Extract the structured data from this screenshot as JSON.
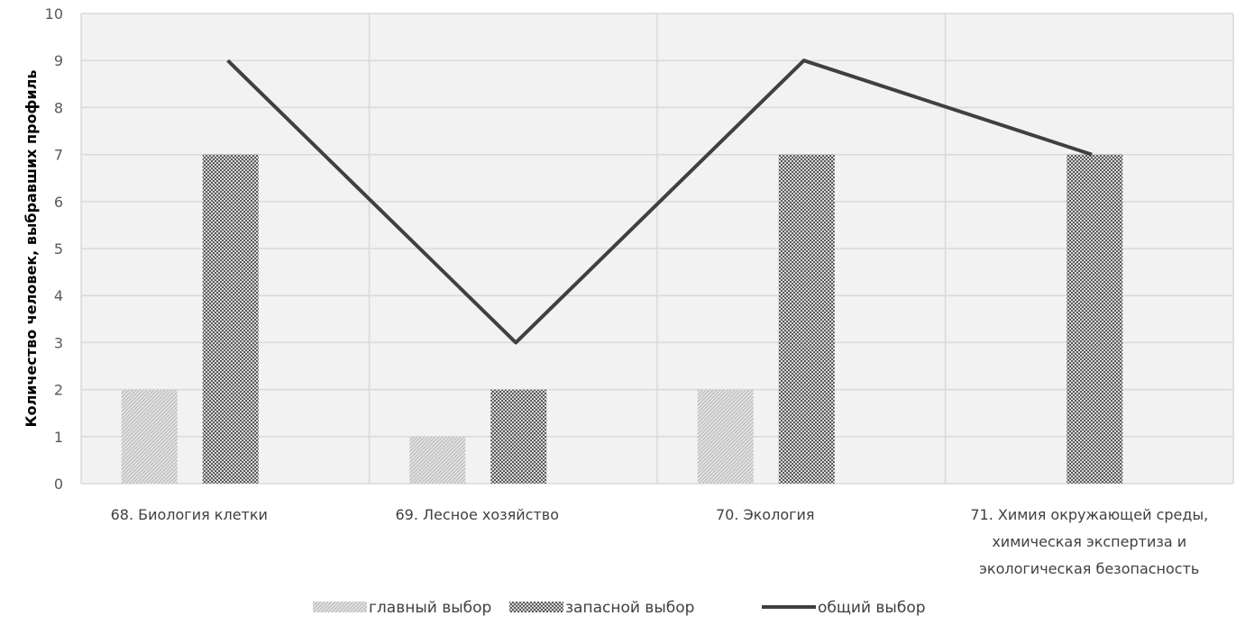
{
  "chart_data": {
    "type": "bar",
    "ylabel": "Количество человек, выбравших профиль",
    "ylim": [
      0,
      10
    ],
    "yticks": [
      0,
      1,
      2,
      3,
      4,
      5,
      6,
      7,
      8,
      9,
      10
    ],
    "grid": true,
    "legend_position": "bottom",
    "categories": [
      [
        "68. Биология клетки"
      ],
      [
        "69. Лесное хозяйство"
      ],
      [
        "70. Экология"
      ],
      [
        "71. Химия окружающей среды,",
        "химическая экспертиза и",
        "экологическая безопасность"
      ]
    ],
    "series": [
      {
        "name": "главный выбор",
        "kind": "bar",
        "values": [
          2,
          1,
          2,
          0
        ]
      },
      {
        "name": "запасной выбор",
        "kind": "bar",
        "values": [
          7,
          2,
          7,
          7
        ]
      },
      {
        "name": "общий выбор",
        "kind": "line",
        "values": [
          9,
          3,
          9,
          7
        ]
      }
    ]
  },
  "colors": {
    "plot_background": "#f2f2f2",
    "grid": "#d9d9d9",
    "line": "#404040",
    "bar_light": "#d0d0d0",
    "bar_dark": "#8c8c8c"
  }
}
